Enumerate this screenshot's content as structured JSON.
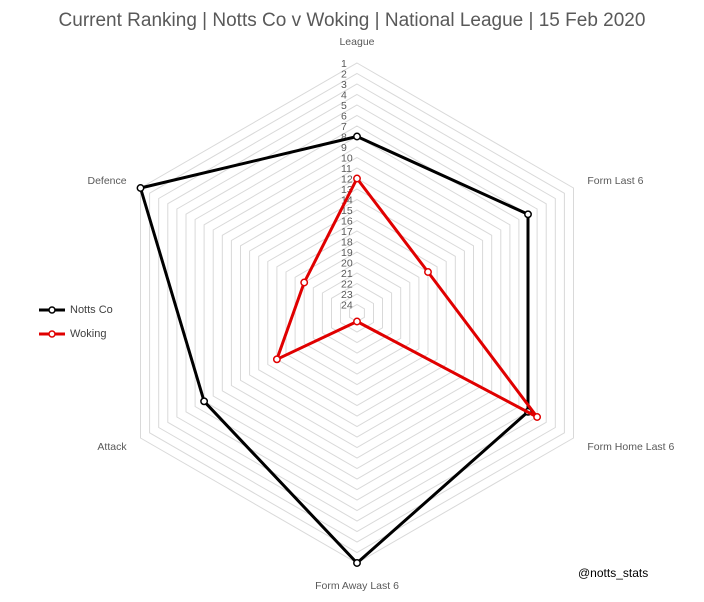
{
  "chart_data": {
    "type": "radar",
    "title": "Current Ranking | Notts Co v Woking | National League | 15 Feb 2020",
    "axes": [
      "League",
      "Form Last 6",
      "Form Home Last 6",
      "Form Away Last 6",
      "Attack",
      "Defence"
    ],
    "ticks": [
      "1",
      "2",
      "3",
      "4",
      "5",
      "6",
      "7",
      "8",
      "9",
      "10",
      "11",
      "12",
      "13",
      "14",
      "15",
      "16",
      "17",
      "18",
      "19",
      "20",
      "21",
      "22",
      "23",
      "24"
    ],
    "scale": {
      "best": 1,
      "worst": 24,
      "reversed": true
    },
    "series": [
      {
        "name": "Notts Co",
        "color": "#000000",
        "values": [
          8,
          6,
          6,
          1,
          8,
          1
        ]
      },
      {
        "name": "Woking",
        "color": "#e00000",
        "values": [
          12,
          17,
          5,
          24,
          16,
          19
        ]
      }
    ],
    "legend_position": "left"
  },
  "watermark": "@notts_stats"
}
